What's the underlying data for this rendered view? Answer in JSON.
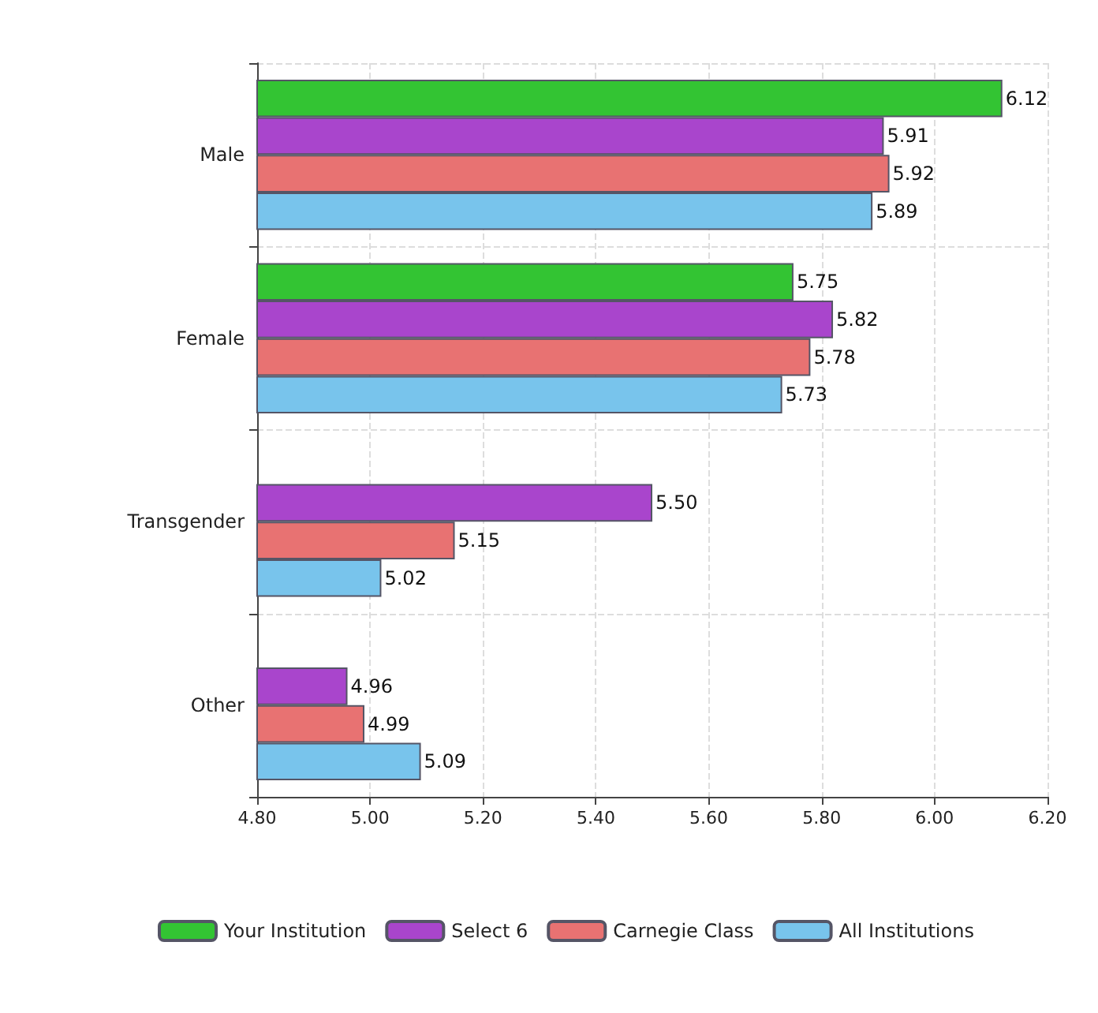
{
  "chart_data": {
    "type": "bar",
    "orientation": "horizontal",
    "categories": [
      "Male",
      "Female",
      "Transgender",
      "Other"
    ],
    "series": [
      {
        "name": "Your Institution",
        "color": "#33c433",
        "values": [
          6.12,
          5.75,
          null,
          null
        ],
        "value_labels": [
          "6.12",
          "5.75",
          null,
          null
        ]
      },
      {
        "name": "Select 6",
        "color": "#a945cc",
        "values": [
          5.91,
          5.82,
          5.5,
          4.96
        ],
        "value_labels": [
          "5.91",
          "5.82",
          "5.50",
          "4.96"
        ]
      },
      {
        "name": "Carnegie Class",
        "color": "#e87272",
        "values": [
          5.92,
          5.78,
          5.15,
          4.99
        ],
        "value_labels": [
          "5.92",
          "5.78",
          "5.15",
          "4.99"
        ]
      },
      {
        "name": "All Institutions",
        "color": "#78c4ec",
        "values": [
          5.89,
          5.73,
          5.02,
          5.09
        ],
        "value_labels": [
          "5.89",
          "5.73",
          "5.02",
          "5.09"
        ]
      }
    ],
    "xlim": [
      4.8,
      6.2
    ],
    "xticks": [
      {
        "value": 4.8,
        "label": "4.80"
      },
      {
        "value": 5.0,
        "label": "5.00"
      },
      {
        "value": 5.2,
        "label": "5.20"
      },
      {
        "value": 5.4,
        "label": "5.40"
      },
      {
        "value": 5.6,
        "label": "5.60"
      },
      {
        "value": 5.8,
        "label": "5.80"
      },
      {
        "value": 6.0,
        "label": "6.00"
      },
      {
        "value": 6.2,
        "label": "6.20"
      }
    ],
    "grid": true,
    "legend": "bottom"
  }
}
